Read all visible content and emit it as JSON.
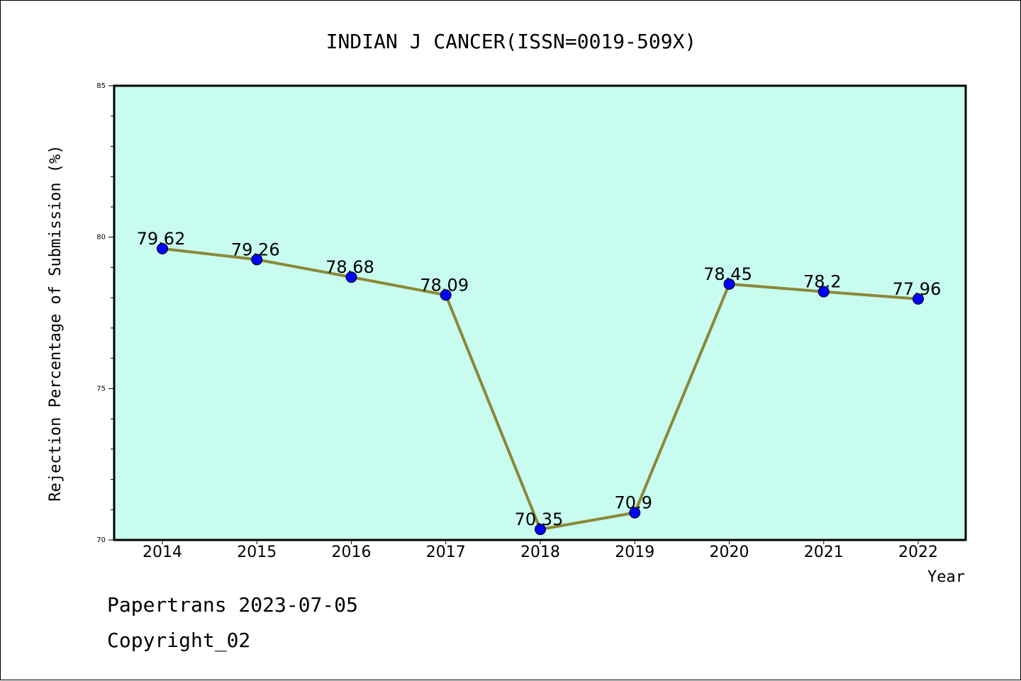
{
  "chart_data": {
    "type": "line",
    "title": "INDIAN J CANCER(ISSN=0019-509X)",
    "xlabel": "Year",
    "ylabel": "Rejection Percentage of Submission (%)",
    "categories": [
      "2014",
      "2015",
      "2016",
      "2017",
      "2018",
      "2019",
      "2020",
      "2021",
      "2022"
    ],
    "series": [
      {
        "values": [
          79.62,
          79.26,
          78.68,
          78.09,
          70.35,
          70.9,
          78.45,
          78.2,
          77.96
        ],
        "labels": [
          "79.62",
          "79.26",
          "78.68",
          "78.09",
          "70.35",
          "70.9",
          "78.45",
          "78.2",
          "77.96"
        ]
      }
    ],
    "ylim": [
      70,
      85
    ],
    "yticks": [
      "70",
      "75",
      "80",
      "85"
    ],
    "grid": false,
    "legend": "none"
  },
  "colors": {
    "plot_background": "#c8fcee",
    "line": "#8b8838",
    "marker": "#0000ff",
    "axes": "#000000"
  },
  "footer": {
    "date_text": "Papertrans 2023-07-05",
    "copyright_text": "Copyright_02"
  }
}
